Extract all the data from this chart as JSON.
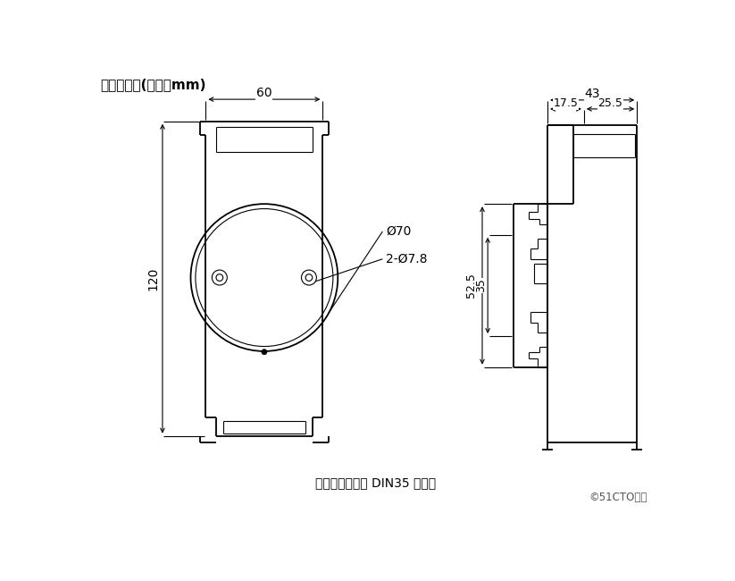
{
  "title": "外形尺寸：(单位：mm)",
  "bottom_text": "可以安装在标准 DIN35 导轨上",
  "watermark": "©51CTO博客",
  "bg_color": "#ffffff",
  "line_color": "#000000"
}
